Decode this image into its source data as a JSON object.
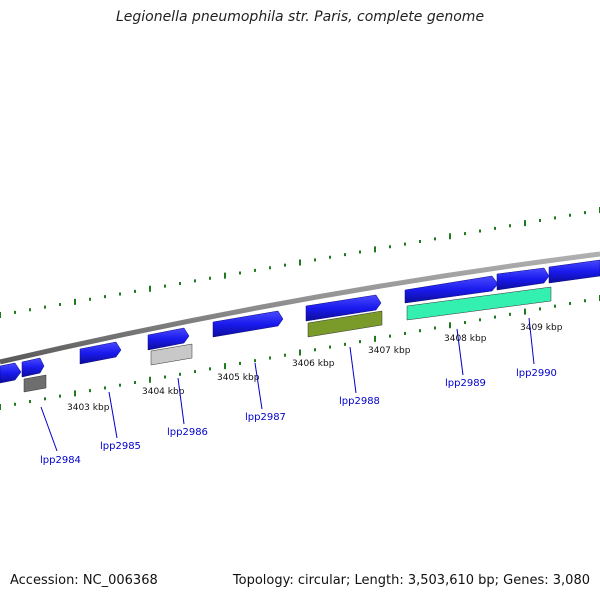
{
  "title": "Legionella pneumophila str. Paris, complete genome",
  "footer": {
    "accession": "Accession: NC_006368",
    "topology": "Topology: circular; Length: 3,503,610 bp; Genes: 3,080"
  },
  "colors": {
    "backbone": "#8c8c8c",
    "forward_gene": "#1a1aee",
    "tick": "#1f7a1f",
    "label": "#0000cc"
  },
  "kbp_labels": [
    "3403 kbp",
    "3404 kbp",
    "3405 kbp",
    "3406 kbp",
    "3407 kbp",
    "3408 kbp",
    "3409 kbp"
  ],
  "genes": [
    {
      "label": "lpp2984",
      "reverse_color": "#6e6e6e"
    },
    {
      "label": "lpp2985"
    },
    {
      "label": "lpp2986",
      "reverse_color": "#c8c8c8"
    },
    {
      "label": "lpp2987"
    },
    {
      "label": "lpp2988",
      "reverse_color": "#7a9a2a"
    },
    {
      "label": "lpp2989",
      "reverse_color": "#33f0b0"
    },
    {
      "label": "lpp2990"
    }
  ]
}
